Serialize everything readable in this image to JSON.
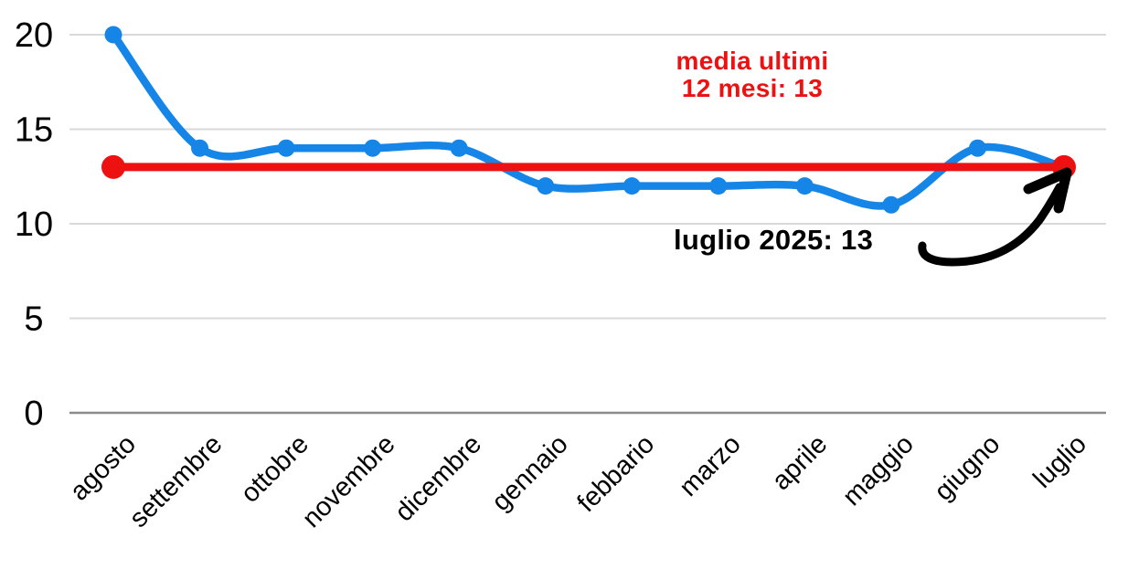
{
  "chart_data": {
    "type": "line",
    "title": "",
    "xlabel": "",
    "ylabel": "",
    "categories": [
      "agosto",
      "settembre",
      "ottobre",
      "novembre",
      "dicembre",
      "gennaio",
      "febbario",
      "marzo",
      "aprile",
      "maggio",
      "giugno",
      "luglio"
    ],
    "series": [
      {
        "name": "blue-line-monthly-values",
        "values": [
          20,
          14,
          14,
          14,
          14,
          12,
          12,
          12,
          12,
          11,
          14,
          13
        ],
        "color": "#1586e8",
        "style": "smooth",
        "dots": "all"
      },
      {
        "name": "red-average-line",
        "values": [
          13,
          13,
          13,
          13,
          13,
          13,
          13,
          13,
          13,
          13,
          13,
          13
        ],
        "color": "#ee1111",
        "style": "straight",
        "dots": "ends"
      }
    ],
    "yticks": [
      0,
      5,
      10,
      15,
      20
    ],
    "ylim": [
      0,
      20
    ],
    "grid": true,
    "legend": "none",
    "annotations": {
      "average_label": {
        "line1": "media ultimi",
        "line2": "12 mesi: 13",
        "color": "#ee1111"
      },
      "callout": {
        "text": "luglio 2025: 13",
        "color": "#000000"
      }
    },
    "colors": {
      "gridline": "#d9d9d9",
      "zero_line": "#8a8a8a",
      "axis_text": "#000000"
    }
  }
}
